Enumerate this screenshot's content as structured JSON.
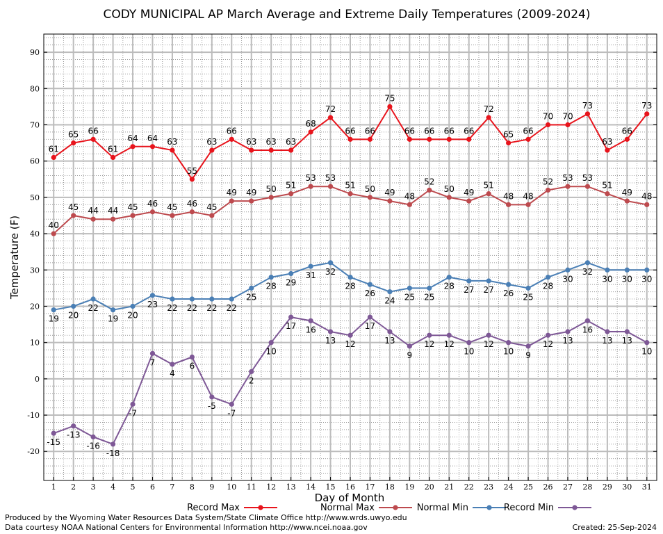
{
  "chart_data": {
    "type": "line",
    "title": "CODY MUNICIPAL AP March Average and Extreme Daily Temperatures (2009-2024)",
    "xlabel": "Day of Month",
    "ylabel": "Temperature (F)",
    "xlim": [
      0.5,
      31.5
    ],
    "ylim": [
      -28,
      95
    ],
    "yticks": [
      -20,
      -10,
      0,
      10,
      20,
      30,
      40,
      50,
      60,
      70,
      80,
      90
    ],
    "x": [
      1,
      2,
      3,
      4,
      5,
      6,
      7,
      8,
      9,
      10,
      11,
      12,
      13,
      14,
      15,
      16,
      17,
      18,
      19,
      20,
      21,
      22,
      23,
      24,
      25,
      26,
      27,
      28,
      29,
      30,
      31
    ],
    "grid": true,
    "legend_position": "bottom",
    "series": [
      {
        "name": "Record Max",
        "color": "#e8141c",
        "label_pos": "above",
        "values": [
          61,
          65,
          66,
          61,
          64,
          64,
          63,
          55,
          63,
          66,
          63,
          63,
          63,
          68,
          72,
          66,
          66,
          75,
          66,
          66,
          66,
          66,
          72,
          65,
          66,
          70,
          70,
          73,
          63,
          66,
          73
        ]
      },
      {
        "name": "Normal Max",
        "color": "#bd4a4e",
        "label_pos": "above",
        "values": [
          40,
          45,
          44,
          44,
          45,
          46,
          45,
          46,
          45,
          49,
          49,
          50,
          51,
          53,
          53,
          51,
          50,
          49,
          48,
          52,
          50,
          49,
          51,
          48,
          48,
          52,
          53,
          53,
          51,
          49,
          48
        ]
      },
      {
        "name": "Normal Min",
        "color": "#4a7fb5",
        "label_pos": "below",
        "values": [
          19,
          20,
          22,
          19,
          20,
          23,
          22,
          22,
          22,
          22,
          25,
          28,
          29,
          31,
          32,
          28,
          26,
          24,
          25,
          25,
          28,
          27,
          27,
          26,
          25,
          28,
          30,
          32,
          30,
          30,
          30
        ]
      },
      {
        "name": "Record Min",
        "color": "#7e5896",
        "label_pos": "below",
        "values": [
          -15,
          -13,
          -16,
          -18,
          -7,
          7,
          4,
          6,
          -5,
          -7,
          2,
          10,
          17,
          16,
          13,
          12,
          17,
          13,
          9,
          12,
          12,
          10,
          12,
          10,
          9,
          12,
          13,
          16,
          13,
          13,
          10
        ]
      }
    ]
  },
  "footer": {
    "line1": "Produced by the Wyoming Water Resources Data System/State Climate Office http://www.wrds.uwyo.edu",
    "line2": "Data courtesy NOAA National Centers for Environmental Information http://www.ncei.noaa.gov",
    "created": "Created:  25-Sep-2024"
  }
}
